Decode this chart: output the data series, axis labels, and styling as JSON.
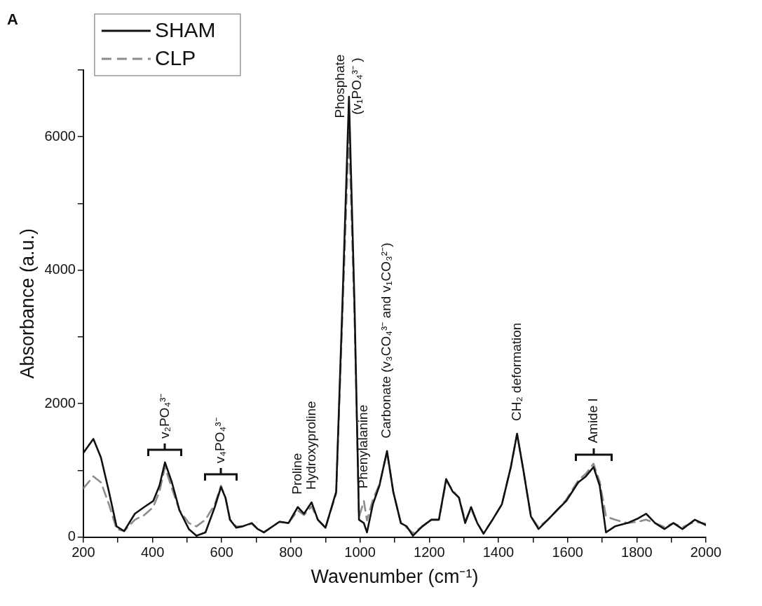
{
  "chart_data": {
    "type": "line",
    "xlabel": "Wavenumber (cm⁻¹)",
    "ylabel": "Absorbance (a.u.)",
    "x": [
      200,
      229,
      251,
      274,
      296,
      318,
      349,
      376,
      402,
      420,
      436,
      456,
      478,
      505,
      527,
      553,
      580,
      598,
      611,
      624,
      642,
      660,
      687,
      704,
      722,
      767,
      793,
      820,
      838,
      860,
      878,
      900,
      931,
      949,
      968,
      984,
      997,
      1011,
      1020,
      1037,
      1056,
      1078,
      1096,
      1118,
      1135,
      1153,
      1180,
      1206,
      1228,
      1249,
      1268,
      1286,
      1304,
      1321,
      1339,
      1357,
      1383,
      1410,
      1436,
      1454,
      1472,
      1494,
      1516,
      1543,
      1569,
      1596,
      1631,
      1653,
      1675,
      1693,
      1711,
      1737,
      1773,
      1804,
      1827,
      1853,
      1880,
      1906,
      1932,
      1968,
      2000
    ],
    "series": [
      {
        "name": "SHAM",
        "color": "#111111",
        "line_style": "solid",
        "values": [
          1260,
          1470,
          1190,
          680,
          160,
          90,
          350,
          450,
          540,
          770,
          1120,
          820,
          400,
          120,
          20,
          70,
          450,
          750,
          590,
          260,
          140,
          160,
          210,
          120,
          70,
          230,
          210,
          450,
          350,
          520,
          260,
          140,
          680,
          3490,
          6600,
          3490,
          260,
          210,
          70,
          490,
          770,
          1290,
          680,
          210,
          160,
          20,
          160,
          260,
          260,
          870,
          680,
          590,
          210,
          450,
          210,
          50,
          260,
          490,
          1050,
          1550,
          1010,
          310,
          120,
          260,
          400,
          540,
          820,
          910,
          1050,
          770,
          70,
          160,
          210,
          280,
          350,
          210,
          120,
          210,
          120,
          260,
          180
        ]
      },
      {
        "name": "CLP",
        "color": "#8c8c8c",
        "line_style": "dashed",
        "values": [
          730,
          910,
          820,
          490,
          120,
          90,
          260,
          330,
          450,
          680,
          1050,
          730,
          400,
          210,
          160,
          260,
          490,
          770,
          590,
          260,
          160,
          160,
          200,
          120,
          70,
          230,
          210,
          400,
          330,
          460,
          260,
          140,
          650,
          3300,
          6100,
          3300,
          300,
          540,
          250,
          560,
          790,
          1270,
          680,
          210,
          140,
          60,
          160,
          260,
          260,
          840,
          700,
          590,
          250,
          420,
          210,
          60,
          260,
          490,
          1050,
          1540,
          1010,
          310,
          150,
          260,
          400,
          560,
          850,
          950,
          1100,
          830,
          310,
          260,
          210,
          230,
          260,
          210,
          150,
          210,
          150,
          230,
          200
        ]
      }
    ],
    "xlim": [
      200,
      2000
    ],
    "xticks": [
      200,
      {
        "value": 300,
        "label": null
      },
      400,
      {
        "value": 500,
        "label": null
      },
      600,
      {
        "value": 700,
        "label": null
      },
      800,
      {
        "value": 900,
        "label": null
      },
      1000,
      {
        "value": 1100,
        "label": null
      },
      1200,
      {
        "value": 1300,
        "label": null
      },
      1400,
      {
        "value": 1500,
        "label": null
      },
      1600,
      {
        "value": 1700,
        "label": null
      },
      1800,
      {
        "value": 1900,
        "label": null
      },
      2000
    ],
    "ylim": [
      0,
      7000
    ],
    "yticks": [
      0,
      {
        "value": 1000,
        "label": null
      },
      2000,
      {
        "value": 3000,
        "label": null
      },
      4000,
      {
        "value": 5000,
        "label": null
      },
      6000,
      {
        "value": 7000,
        "label": null
      }
    ],
    "grid": false,
    "legend": "top left",
    "marker": "none",
    "annotations": [
      "A",
      {
        "text": "v₂PO₄³⁻",
        "x": 436,
        "y": 1120
      },
      {
        "text": "v₄PO₄³⁻",
        "x": 598,
        "y": 750
      },
      {
        "text": "Proline",
        "x": 820,
        "y": 450
      },
      {
        "text": "Hydroxyproline",
        "x": 860,
        "y": 520
      },
      {
        "text": "Phosphate",
        "x": 968,
        "y": 6600
      },
      {
        "text": "(v₁PO₄³⁻ )",
        "x": 968,
        "y": 6600
      },
      {
        "text": "Phenylalanine",
        "x": 1011,
        "y": 540
      },
      {
        "text": "Carbonate (v₃CO₄³⁻ and v₁CO₃²⁻)",
        "x": 1078,
        "y": 1290
      },
      {
        "text": "CH₂ deformation",
        "x": 1454,
        "y": 1550
      },
      {
        "text": "Amide I",
        "x": 1675,
        "y": 1050
      }
    ]
  }
}
